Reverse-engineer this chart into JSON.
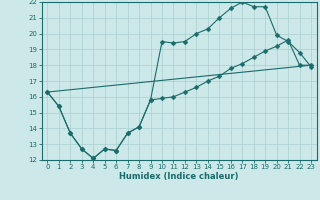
{
  "title": "",
  "xlabel": "Humidex (Indice chaleur)",
  "ylabel": "",
  "xlim": [
    -0.5,
    23.5
  ],
  "ylim": [
    12,
    22
  ],
  "xticks": [
    0,
    1,
    2,
    3,
    4,
    5,
    6,
    7,
    8,
    9,
    10,
    11,
    12,
    13,
    14,
    15,
    16,
    17,
    18,
    19,
    20,
    21,
    22,
    23
  ],
  "yticks": [
    12,
    13,
    14,
    15,
    16,
    17,
    18,
    19,
    20,
    21,
    22
  ],
  "bg_color": "#cde8e8",
  "line_color": "#1a6b6b",
  "grid_color": "#aacfcf",
  "line1_x": [
    0,
    1,
    2,
    3,
    4,
    5,
    6,
    7,
    8,
    9,
    10,
    11,
    12,
    13,
    14,
    15,
    16,
    17,
    18,
    19,
    20,
    21,
    22,
    23
  ],
  "line1_y": [
    16.3,
    15.4,
    13.7,
    12.7,
    12.1,
    12.7,
    12.6,
    13.7,
    14.1,
    15.8,
    19.5,
    19.4,
    19.5,
    20.0,
    20.3,
    21.0,
    21.6,
    22.0,
    21.7,
    21.7,
    19.9,
    19.5,
    18.8,
    17.9
  ],
  "line2_x": [
    0,
    1,
    2,
    3,
    4,
    5,
    6,
    7,
    8,
    9,
    10,
    11,
    12,
    13,
    14,
    15,
    16,
    17,
    18,
    19,
    20,
    21,
    22,
    23
  ],
  "line2_y": [
    16.3,
    15.4,
    13.7,
    12.7,
    12.1,
    12.7,
    12.6,
    13.7,
    14.1,
    15.8,
    15.9,
    16.0,
    16.3,
    16.6,
    17.0,
    17.3,
    17.8,
    18.1,
    18.5,
    18.9,
    19.2,
    19.6,
    18.0,
    18.0
  ],
  "line3_x": [
    0,
    23
  ],
  "line3_y": [
    16.3,
    18.0
  ],
  "marker": "D",
  "markersize": 2.5
}
